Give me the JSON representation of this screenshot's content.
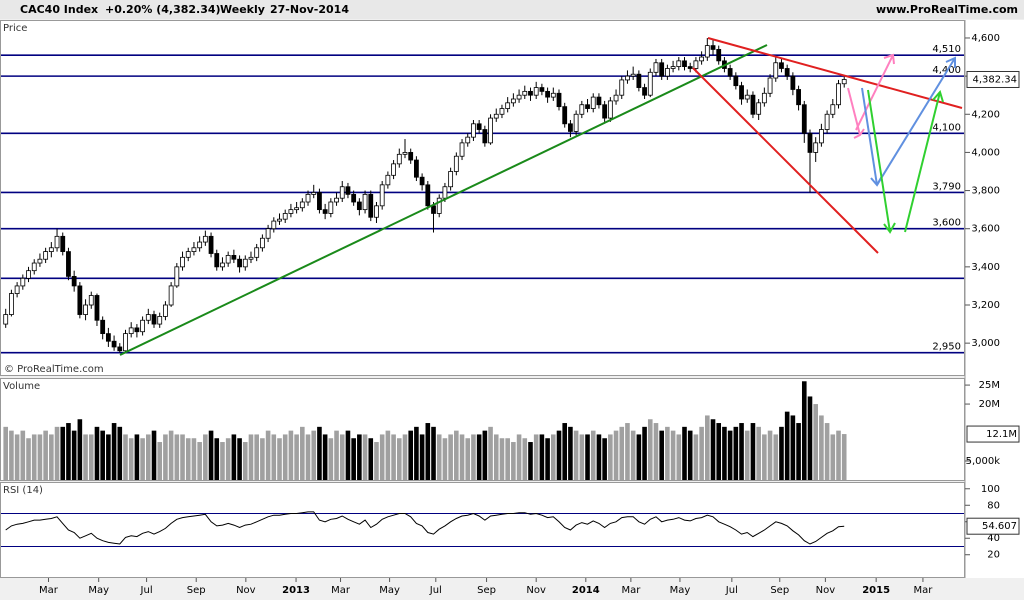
{
  "header": {
    "instrument": "CAC40 Index",
    "change": "+0.20% (4,382.34)",
    "period": "Weekly",
    "date": "27-Nov-2014",
    "site": "www.ProRealTime.com"
  },
  "chart_data": [
    {
      "type": "candlestick",
      "title": "Price",
      "watermark": "© ProRealTime.com",
      "xlim": [
        -1,
        168
      ],
      "ylim": [
        2833,
        4689
      ],
      "yticks": [
        {
          "value": 3000,
          "label": "3,000"
        },
        {
          "value": 3200,
          "label": "3,200"
        },
        {
          "value": 3400,
          "label": "3,400"
        },
        {
          "value": 3600,
          "label": "3,600"
        },
        {
          "value": 3800,
          "label": "3,800"
        },
        {
          "value": 4000,
          "label": "4,000"
        },
        {
          "value": 4200,
          "label": "4,200"
        },
        {
          "value": 4400,
          "label": "4,400"
        },
        {
          "value": 4600,
          "label": "4,600"
        }
      ],
      "last": {
        "value": 4382.34,
        "label": "4,382.34"
      },
      "levels": [
        {
          "value": 4510,
          "label": "4,510"
        },
        {
          "value": 4400,
          "label": "4,400"
        },
        {
          "value": 4100,
          "label": "4,100"
        },
        {
          "value": 3790,
          "label": "3,790"
        },
        {
          "value": 3600,
          "label": "3,600"
        },
        {
          "value": 3340,
          "label": null
        },
        {
          "value": 2950,
          "label": "2,950"
        }
      ],
      "level_color": "#000080",
      "up_color": "#ffffff",
      "down_color": "#000000",
      "open": [
        3100,
        3150,
        3260,
        3300,
        3340,
        3380,
        3420,
        3440,
        3480,
        3500,
        3560,
        3480,
        3350,
        3300,
        3150,
        3200,
        3250,
        3120,
        3050,
        3010,
        2980,
        2960,
        3050,
        3080,
        3060,
        3120,
        3150,
        3100,
        3140,
        3200,
        3300,
        3400,
        3450,
        3480,
        3500,
        3530,
        3560,
        3470,
        3400,
        3420,
        3460,
        3440,
        3400,
        3440,
        3450,
        3500,
        3550,
        3600,
        3640,
        3650,
        3680,
        3700,
        3710,
        3740,
        3780,
        3790,
        3700,
        3680,
        3740,
        3760,
        3820,
        3780,
        3740,
        3700,
        3780,
        3660,
        3720,
        3830,
        3880,
        3940,
        3990,
        4000,
        3960,
        3870,
        3830,
        3720,
        3680,
        3760,
        3820,
        3900,
        3980,
        4050,
        4080,
        4150,
        4120,
        4050,
        4180,
        4200,
        4230,
        4260,
        4280,
        4300,
        4320,
        4300,
        4340,
        4320,
        4290,
        4310,
        4240,
        4150,
        4110,
        4200,
        4250,
        4230,
        4290,
        4250,
        4180,
        4270,
        4300,
        4380,
        4400,
        4410,
        4340,
        4300,
        4420,
        4470,
        4400,
        4440,
        4450,
        4480,
        4450,
        4440,
        4480,
        4500,
        4560,
        4540,
        4480,
        4440,
        4400,
        4350,
        4280,
        4300,
        4200,
        4260,
        4310,
        4390,
        4470,
        4440,
        4400,
        4330,
        4250,
        4100,
        4000,
        4050,
        4120,
        4200,
        4250,
        4360
      ],
      "high": [
        3180,
        3280,
        3320,
        3360,
        3400,
        3440,
        3470,
        3500,
        3530,
        3600,
        3580,
        3500,
        3380,
        3320,
        3230,
        3270,
        3260,
        3140,
        3080,
        3040,
        3000,
        3070,
        3110,
        3100,
        3140,
        3180,
        3170,
        3160,
        3220,
        3320,
        3420,
        3480,
        3500,
        3530,
        3560,
        3590,
        3580,
        3490,
        3450,
        3480,
        3490,
        3460,
        3460,
        3480,
        3520,
        3570,
        3620,
        3660,
        3680,
        3700,
        3730,
        3740,
        3760,
        3800,
        3830,
        3810,
        3730,
        3760,
        3790,
        3850,
        3840,
        3800,
        3760,
        3800,
        3800,
        3740,
        3850,
        3900,
        3960,
        4020,
        4070,
        4020,
        3980,
        3890,
        3850,
        3740,
        3780,
        3840,
        3920,
        4000,
        4070,
        4100,
        4170,
        4170,
        4140,
        4200,
        4230,
        4250,
        4290,
        4310,
        4330,
        4350,
        4340,
        4370,
        4360,
        4340,
        4340,
        4330,
        4260,
        4170,
        4220,
        4270,
        4280,
        4310,
        4310,
        4270,
        4290,
        4330,
        4400,
        4430,
        4450,
        4430,
        4360,
        4440,
        4490,
        4490,
        4460,
        4480,
        4500,
        4500,
        4470,
        4500,
        4530,
        4600,
        4590,
        4560,
        4500,
        4460,
        4420,
        4370,
        4330,
        4320,
        4280,
        4340,
        4410,
        4500,
        4490,
        4460,
        4420,
        4350,
        4270,
        4120,
        4080,
        4150,
        4220,
        4280,
        4380,
        4400
      ],
      "low": [
        3080,
        3140,
        3240,
        3280,
        3320,
        3360,
        3400,
        3420,
        3450,
        3480,
        3460,
        3330,
        3270,
        3130,
        3120,
        3180,
        3090,
        3020,
        2980,
        2960,
        2950,
        2950,
        3030,
        3030,
        3040,
        3100,
        3080,
        3080,
        3120,
        3190,
        3290,
        3380,
        3430,
        3460,
        3480,
        3510,
        3450,
        3380,
        3380,
        3400,
        3420,
        3370,
        3380,
        3420,
        3430,
        3480,
        3530,
        3580,
        3620,
        3630,
        3660,
        3680,
        3690,
        3720,
        3760,
        3680,
        3650,
        3660,
        3720,
        3740,
        3760,
        3720,
        3670,
        3680,
        3640,
        3630,
        3700,
        3810,
        3860,
        3920,
        3970,
        3940,
        3850,
        3800,
        3700,
        3580,
        3660,
        3740,
        3800,
        3880,
        3960,
        4030,
        4060,
        4100,
        4030,
        4040,
        4160,
        4180,
        4210,
        4240,
        4260,
        4280,
        4270,
        4280,
        4300,
        4260,
        4270,
        4220,
        4130,
        4080,
        4090,
        4180,
        4210,
        4210,
        4230,
        4160,
        4160,
        4250,
        4280,
        4360,
        4380,
        4320,
        4280,
        4290,
        4400,
        4380,
        4380,
        4420,
        4430,
        4430,
        4420,
        4420,
        4460,
        4480,
        4510,
        4460,
        4420,
        4380,
        4330,
        4250,
        4260,
        4180,
        4170,
        4240,
        4290,
        4370,
        4420,
        4380,
        4300,
        4220,
        4050,
        3790,
        3950,
        4030,
        4100,
        4180,
        4230,
        4340
      ],
      "close": [
        3150,
        3260,
        3300,
        3340,
        3380,
        3420,
        3440,
        3480,
        3500,
        3560,
        3480,
        3350,
        3300,
        3150,
        3200,
        3250,
        3120,
        3050,
        3010,
        2980,
        2960,
        3050,
        3080,
        3060,
        3120,
        3150,
        3100,
        3140,
        3200,
        3300,
        3400,
        3450,
        3480,
        3500,
        3530,
        3560,
        3470,
        3400,
        3420,
        3460,
        3440,
        3400,
        3440,
        3450,
        3500,
        3550,
        3600,
        3640,
        3650,
        3680,
        3700,
        3710,
        3740,
        3780,
        3790,
        3700,
        3680,
        3740,
        3760,
        3820,
        3780,
        3740,
        3700,
        3780,
        3660,
        3720,
        3830,
        3880,
        3940,
        3990,
        4000,
        3960,
        3870,
        3830,
        3720,
        3680,
        3760,
        3820,
        3900,
        3980,
        4050,
        4080,
        4150,
        4120,
        4050,
        4180,
        4200,
        4230,
        4260,
        4280,
        4300,
        4320,
        4300,
        4340,
        4320,
        4290,
        4310,
        4240,
        4150,
        4110,
        4200,
        4250,
        4230,
        4290,
        4250,
        4180,
        4270,
        4300,
        4380,
        4400,
        4410,
        4340,
        4300,
        4420,
        4470,
        4400,
        4440,
        4450,
        4480,
        4450,
        4440,
        4480,
        4500,
        4560,
        4540,
        4480,
        4440,
        4400,
        4350,
        4280,
        4300,
        4200,
        4260,
        4310,
        4390,
        4470,
        4440,
        4400,
        4330,
        4250,
        4100,
        4000,
        4050,
        4120,
        4200,
        4250,
        4360,
        4382.34
      ]
    },
    {
      "type": "bar",
      "title": "Volume",
      "ylim": [
        0,
        26.6
      ],
      "yticks": [
        {
          "value": 5,
          "label": "5,000k"
        },
        {
          "value": 20,
          "label": "20M"
        },
        {
          "value": 25,
          "label": "25M"
        }
      ],
      "last": {
        "value": 12.1,
        "label": "12.1M"
      },
      "up_color": "#a0a0a0",
      "down_color": "#000000",
      "values": [
        14,
        13,
        12,
        13,
        11,
        12,
        12,
        13,
        12,
        14,
        14,
        15,
        13,
        16,
        12,
        12,
        14,
        13,
        12,
        15,
        14,
        12,
        11,
        12,
        11,
        12,
        13,
        10,
        12,
        13,
        12,
        12,
        11,
        11,
        10,
        12,
        13,
        11,
        10,
        11,
        12,
        11,
        10,
        12,
        12,
        11,
        13,
        12,
        11,
        12,
        13,
        12,
        14,
        12,
        13,
        14,
        12,
        11,
        13,
        12,
        13,
        11,
        12,
        12,
        11,
        10,
        12,
        13,
        12,
        11,
        12,
        13,
        14,
        12,
        15,
        14,
        12,
        11,
        12,
        13,
        12,
        11,
        12,
        12,
        13,
        14,
        12,
        11,
        11,
        10,
        12,
        11,
        10,
        12,
        12,
        11,
        12,
        13,
        15,
        14,
        13,
        12,
        12,
        13,
        12,
        11,
        12,
        13,
        14,
        15,
        13,
        12,
        14,
        16,
        15,
        13,
        14,
        13,
        12,
        14,
        13,
        12,
        14,
        17,
        16,
        15,
        14,
        13,
        14,
        15,
        13,
        15,
        14,
        12,
        13,
        12,
        14,
        18,
        17,
        15,
        26,
        22,
        20,
        17,
        15,
        12,
        13,
        12.1
      ]
    },
    {
      "type": "line",
      "title": "RSI (14)",
      "ylim": [
        -7,
        107
      ],
      "yticks": [
        20,
        40,
        60,
        80,
        100
      ],
      "levels": [
        70,
        30
      ],
      "color": "#000000",
      "level_color": "#000080",
      "last": 54.607,
      "xticks": [
        {
          "value": 7.5,
          "label": "Mar"
        },
        {
          "value": 16.3,
          "label": "May"
        },
        {
          "value": 24.7,
          "label": "Jul"
        },
        {
          "value": 33.4,
          "label": "Sep"
        },
        {
          "value": 42.1,
          "label": "Nov"
        },
        {
          "value": 50.9,
          "label": "2013"
        },
        {
          "value": 58.7,
          "label": "Mar"
        },
        {
          "value": 67.3,
          "label": "May"
        },
        {
          "value": 75.4,
          "label": "Jul"
        },
        {
          "value": 84.3,
          "label": "Sep"
        },
        {
          "value": 93,
          "label": "Nov"
        },
        {
          "value": 101.7,
          "label": "2014"
        },
        {
          "value": 109.6,
          "label": "Mar"
        },
        {
          "value": 118.2,
          "label": "May"
        },
        {
          "value": 127.3,
          "label": "Jul"
        },
        {
          "value": 135.7,
          "label": "Sep"
        },
        {
          "value": 143.7,
          "label": "Nov"
        },
        {
          "value": 152.6,
          "label": "2015"
        },
        {
          "value": 160.8,
          "label": "Mar"
        }
      ],
      "values": [
        50,
        55,
        57,
        58,
        60,
        62,
        62,
        63,
        64,
        66,
        58,
        50,
        47,
        40,
        43,
        46,
        40,
        37,
        35,
        34,
        33,
        41,
        43,
        42,
        46,
        48,
        45,
        48,
        52,
        58,
        63,
        65,
        66,
        67,
        68,
        69,
        60,
        55,
        56,
        58,
        56,
        53,
        56,
        57,
        60,
        63,
        66,
        68,
        68,
        69,
        70,
        70,
        71,
        72,
        72,
        62,
        60,
        63,
        64,
        67,
        63,
        60,
        57,
        62,
        53,
        57,
        63,
        66,
        68,
        70,
        70,
        66,
        58,
        55,
        47,
        45,
        51,
        55,
        60,
        64,
        67,
        68,
        70,
        67,
        62,
        67,
        68,
        69,
        70,
        70,
        71,
        71,
        69,
        70,
        68,
        65,
        66,
        60,
        53,
        50,
        56,
        59,
        57,
        61,
        58,
        53,
        58,
        60,
        65,
        66,
        66,
        60,
        57,
        63,
        66,
        60,
        62,
        63,
        65,
        62,
        61,
        64,
        65,
        68,
        66,
        60,
        57,
        54,
        50,
        45,
        47,
        42,
        46,
        50,
        55,
        60,
        58,
        55,
        49,
        44,
        37,
        33,
        36,
        41,
        46,
        49,
        54,
        54.607
      ]
    }
  ]
}
